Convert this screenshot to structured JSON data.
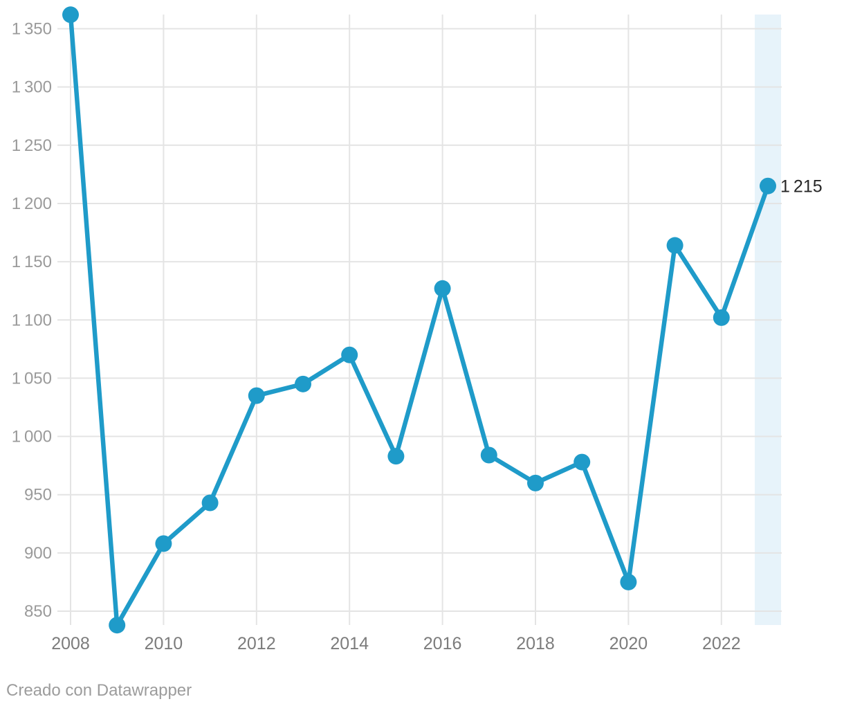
{
  "chart_data": {
    "type": "line",
    "x": [
      2008,
      2009,
      2010,
      2011,
      2012,
      2013,
      2014,
      2015,
      2016,
      2017,
      2018,
      2019,
      2020,
      2021,
      2022,
      2023
    ],
    "values": [
      1362,
      838,
      908,
      943,
      1035,
      1045,
      1070,
      983,
      1127,
      984,
      960,
      978,
      875,
      1164,
      1102,
      1215
    ],
    "title": "",
    "xlabel": "",
    "ylabel": "",
    "ylim": [
      850,
      1350
    ],
    "yticks": [
      850,
      900,
      950,
      1000,
      1050,
      1100,
      1150,
      1200,
      1250,
      1300,
      1350
    ],
    "ytick_labels": [
      "850",
      "900",
      "950",
      "1 000",
      "1 050",
      "1 100",
      "1 150",
      "1 200",
      "1 250",
      "1 300",
      "1 350"
    ],
    "xticks": [
      2008,
      2010,
      2012,
      2014,
      2016,
      2018,
      2020,
      2022
    ],
    "xtick_labels": [
      "2008",
      "2010",
      "2012",
      "2014",
      "2016",
      "2018",
      "2020",
      "2022"
    ],
    "grid": "on",
    "legend": "none",
    "last_value_label": "1 215",
    "highlight_x": 2023,
    "colors": {
      "line": "#1f9bc9",
      "grid": "#e4e4e4",
      "band": "#e7f3fa",
      "ytick_text": "#9a9a9a",
      "xtick_text": "#7c7c7c",
      "value_label": "#262626"
    }
  },
  "attribution": {
    "text": "Creado con Datawrapper"
  }
}
